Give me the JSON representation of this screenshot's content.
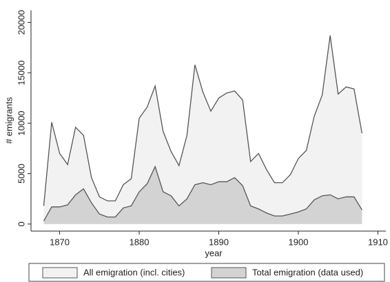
{
  "chart_data": {
    "type": "area",
    "x_label": "year",
    "y_label": "# emigrants",
    "x": [
      1868,
      1869,
      1870,
      1871,
      1872,
      1873,
      1874,
      1875,
      1876,
      1877,
      1878,
      1879,
      1880,
      1881,
      1882,
      1883,
      1884,
      1885,
      1886,
      1887,
      1888,
      1889,
      1890,
      1891,
      1892,
      1893,
      1894,
      1895,
      1896,
      1897,
      1898,
      1899,
      1900,
      1901,
      1902,
      1903,
      1904,
      1905,
      1906,
      1907,
      1908
    ],
    "series": [
      {
        "name": "All emigration (incl. cities)",
        "color": "#f2f2f2",
        "values": [
          1800,
          10100,
          7000,
          5900,
          9600,
          8800,
          4600,
          2700,
          2300,
          2300,
          3900,
          4500,
          10500,
          11600,
          13700,
          9200,
          7200,
          5800,
          8800,
          15800,
          13100,
          11200,
          12500,
          13000,
          13200,
          12300,
          6200,
          7000,
          5400,
          4100,
          4100,
          4900,
          6500,
          7300,
          10700,
          12800,
          18700,
          12900,
          13600,
          13400,
          9000
        ]
      },
      {
        "name": "Total emigration (data used)",
        "color": "#d3d3d3",
        "values": [
          300,
          1700,
          1700,
          1900,
          2900,
          3500,
          2100,
          1000,
          700,
          700,
          1600,
          1800,
          3200,
          4000,
          5700,
          3200,
          2800,
          1800,
          2500,
          3900,
          4100,
          3900,
          4200,
          4200,
          4600,
          3800,
          1800,
          1500,
          1100,
          800,
          800,
          1000,
          1200,
          1500,
          2400,
          2800,
          2900,
          2500,
          2700,
          2700,
          1400
        ]
      }
    ],
    "xlim": [
      1866.4,
      1911
    ],
    "xticks": [
      1870,
      1880,
      1890,
      1900,
      1910
    ],
    "ylim": [
      -700,
      21200
    ],
    "yticks": [
      0,
      5000,
      10000,
      15000,
      20000
    ],
    "line_color": "#555555"
  }
}
